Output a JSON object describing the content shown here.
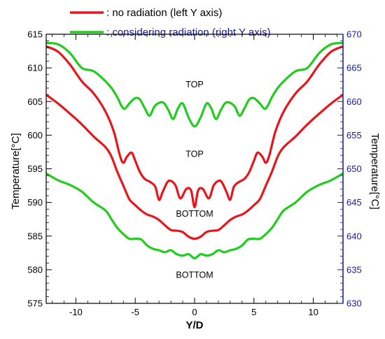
{
  "chart_data": {
    "type": "line",
    "xlabel": "Y/D",
    "ylabel_left": "Temperature[°C]",
    "ylabel_right": "Temperature[°C]",
    "xlim": [
      -12.5,
      12.5
    ],
    "ylim_left": [
      575,
      615
    ],
    "ylim_right": [
      630,
      670
    ],
    "x_ticks": [
      -10,
      -5,
      0,
      5,
      10
    ],
    "y_ticks_left": [
      575,
      580,
      585,
      590,
      595,
      600,
      605,
      610,
      615
    ],
    "y_ticks_right": [
      630,
      635,
      640,
      645,
      650,
      655,
      660,
      665,
      670
    ],
    "legend": [
      {
        "label": ": no radiation (left Y axis)",
        "color": "#e8151b"
      },
      {
        "label": ": considering radiation (right Y axis)",
        "color": "#22cc1f"
      }
    ],
    "annotations": [
      {
        "text": "TOP",
        "x": 0,
        "y": 607.5
      },
      {
        "text": "TOP",
        "x": 0,
        "y": 597.2
      },
      {
        "text": "BOTTOM",
        "x": 0,
        "y": 588.3
      },
      {
        "text": "BOTTOM",
        "x": 0,
        "y": 579.2
      }
    ],
    "series": [
      {
        "legend_index": 0,
        "axis": "left",
        "color": "#e8151b",
        "x": [
          -12.5,
          -11.5,
          -10.5,
          -9.5,
          -8.5,
          -7.5,
          -6.8,
          -6.3,
          -6.0,
          -5.7,
          -5.3,
          -5.0,
          -4.6,
          -4.2,
          -3.7,
          -3.3,
          -3.0,
          -2.7,
          -2.3,
          -2.0,
          -1.6,
          -1.2,
          -0.7,
          -0.3,
          0,
          0.3,
          0.7,
          1.2,
          1.6,
          2.0,
          2.3,
          2.7,
          3.0,
          3.3,
          3.7,
          4.2,
          4.6,
          5.0,
          5.3,
          5.7,
          6.0,
          6.3,
          6.8,
          7.5,
          8.5,
          9.5,
          10.5,
          11.5,
          12.5
        ],
        "y": [
          613.2,
          612.4,
          610.5,
          608.0,
          606.2,
          603.5,
          600.5,
          597.0,
          595.9,
          596.8,
          597.4,
          596.2,
          594.5,
          593.5,
          593.0,
          592.3,
          590.4,
          591.5,
          593.0,
          593.2,
          592.5,
          590.6,
          592.0,
          591.8,
          589.3,
          591.8,
          592.0,
          590.6,
          592.5,
          593.2,
          593.0,
          591.5,
          590.4,
          592.3,
          593.0,
          593.5,
          594.5,
          596.2,
          597.4,
          596.8,
          595.9,
          597.0,
          600.5,
          603.5,
          606.2,
          608.0,
          610.5,
          612.4,
          613.2
        ]
      },
      {
        "legend_index": 0,
        "axis": "left",
        "color": "#e8151b",
        "x": [
          -12.5,
          -11.5,
          -10.5,
          -9.5,
          -8.5,
          -7.5,
          -7.0,
          -6.5,
          -6.0,
          -5.5,
          -5.0,
          -4.5,
          -4.0,
          -3.5,
          -3.0,
          -2.5,
          -2.0,
          -1.5,
          -1.0,
          -0.5,
          0,
          0.5,
          1.0,
          1.5,
          2.0,
          2.5,
          3.0,
          3.5,
          4.0,
          4.5,
          5.0,
          5.5,
          6.0,
          6.5,
          7.0,
          7.5,
          8.5,
          9.5,
          10.5,
          11.5,
          12.5
        ],
        "y": [
          606.0,
          604.7,
          603.2,
          601.6,
          599.8,
          598.2,
          596.8,
          594.5,
          592.5,
          590.5,
          589.6,
          588.8,
          588.2,
          587.9,
          587.4,
          586.6,
          585.9,
          585.8,
          585.6,
          584.9,
          584.6,
          584.9,
          585.6,
          585.8,
          585.9,
          586.6,
          587.4,
          587.9,
          588.2,
          588.8,
          589.6,
          590.5,
          592.5,
          594.5,
          596.8,
          598.2,
          599.8,
          601.6,
          603.2,
          604.7,
          606.0
        ]
      },
      {
        "legend_index": 1,
        "axis": "right",
        "color": "#22cc1f",
        "x": [
          -12.5,
          -11.5,
          -10.5,
          -9.5,
          -8.5,
          -7.5,
          -7.0,
          -6.5,
          -6.2,
          -5.9,
          -5.5,
          -5.0,
          -4.6,
          -4.2,
          -3.8,
          -3.4,
          -3.0,
          -2.6,
          -2.2,
          -1.8,
          -1.4,
          -1.0,
          -0.5,
          0,
          0.5,
          1.0,
          1.4,
          1.8,
          2.2,
          2.6,
          3.0,
          3.4,
          3.8,
          4.2,
          4.6,
          5.0,
          5.5,
          5.9,
          6.2,
          6.5,
          7.0,
          7.5,
          8.5,
          9.5,
          10.5,
          11.5,
          12.5
        ],
        "y": [
          668.7,
          668.5,
          667.2,
          665.0,
          664.5,
          663.0,
          662.0,
          660.6,
          659.5,
          658.9,
          659.7,
          660.5,
          660.3,
          659.0,
          657.9,
          659.2,
          659.8,
          659.8,
          658.7,
          657.4,
          659.0,
          659.7,
          657.6,
          656.3,
          657.6,
          659.7,
          659.0,
          657.4,
          658.7,
          659.8,
          659.8,
          659.2,
          657.9,
          659.0,
          660.3,
          660.5,
          659.7,
          658.9,
          659.5,
          660.6,
          662.0,
          663.0,
          664.5,
          665.0,
          667.2,
          668.5,
          668.7
        ]
      },
      {
        "legend_index": 1,
        "axis": "right",
        "color": "#22cc1f",
        "x": [
          -12.5,
          -11.5,
          -10.5,
          -9.5,
          -8.5,
          -7.5,
          -7.0,
          -6.5,
          -6.0,
          -5.5,
          -5.0,
          -4.5,
          -4.0,
          -3.5,
          -3.0,
          -2.5,
          -2.0,
          -1.5,
          -1.0,
          -0.5,
          0,
          0.5,
          1.0,
          1.5,
          2.0,
          2.5,
          3.0,
          3.5,
          4.0,
          4.5,
          5.0,
          5.5,
          6.0,
          6.5,
          7.0,
          7.5,
          8.5,
          9.5,
          10.5,
          11.5,
          12.5
        ],
        "y": [
          649.3,
          648.3,
          647.6,
          646.6,
          645.0,
          643.8,
          642.5,
          641.2,
          640.3,
          639.6,
          639.6,
          639.5,
          638.6,
          638.1,
          637.9,
          637.6,
          637.9,
          637.3,
          637.1,
          637.3,
          636.7,
          637.3,
          637.1,
          637.3,
          637.9,
          637.6,
          637.9,
          638.1,
          638.6,
          639.5,
          639.6,
          639.6,
          640.3,
          641.2,
          642.5,
          643.8,
          645.0,
          646.6,
          647.6,
          648.3,
          649.3
        ]
      }
    ]
  }
}
